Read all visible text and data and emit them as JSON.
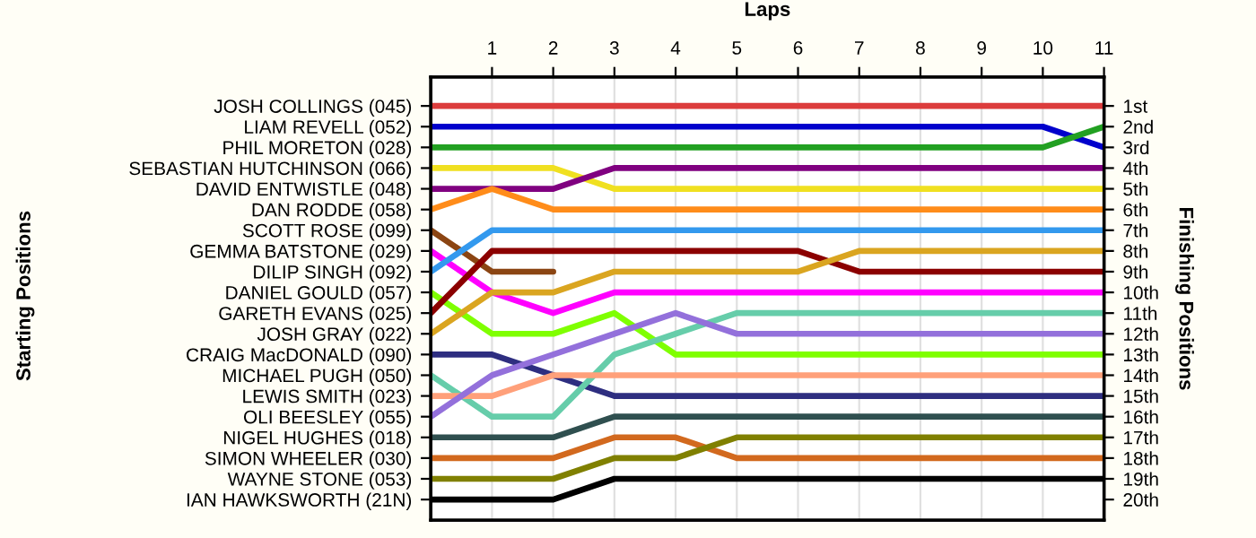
{
  "chart_data": {
    "type": "line",
    "xlabel": "Laps",
    "y2label": "Finishing Positions",
    "x": [
      0,
      1,
      2,
      3,
      4,
      5,
      6,
      7,
      8,
      9,
      10,
      11
    ],
    "xlim": [
      0,
      11
    ],
    "xticks": [
      1,
      2,
      3,
      4,
      5,
      6,
      7,
      8,
      9,
      10,
      11
    ],
    "annotations": [
      "Starting Positions",
      "JOSH COLLINGS (045)",
      "LIAM REVELL (052)",
      "PHIL MORETON (028)",
      "SEBASTIAN HUTCHINSON (066)",
      "DAVID ENTWISTLE (048)",
      "DAN RODDE (058)",
      "SCOTT ROSE (099)",
      "GEMMA BATSTONE (029)",
      "DILIP SINGH (092)",
      "DANIEL GOULD (057)",
      "GARETH EVANS (025)",
      "JOSH GRAY (022)",
      "CRAIG MacDONALD (090)",
      "MICHAEL PUGH (050)",
      "LEWIS SMITH (023)",
      "OLI BEESLEY (055)",
      "NIGEL HUGHES (018)",
      "SIMON WHEELER (030)",
      "WAYNE STONE (053)",
      "IAN HAWKSWORTH (21N)"
    ],
    "y2lim": [
      21,
      -0.4
    ],
    "legend": false,
    "y2ticks": [
      {
        "value": 1,
        "label": "1st"
      },
      {
        "value": 2,
        "label": "2nd"
      },
      {
        "value": 3,
        "label": "3rd"
      },
      {
        "value": 4,
        "label": "4th"
      },
      {
        "value": 5,
        "label": "5th"
      },
      {
        "value": 6,
        "label": "6th"
      },
      {
        "value": 7,
        "label": "7th"
      },
      {
        "value": 8,
        "label": "8th"
      },
      {
        "value": 9,
        "label": "9th"
      },
      {
        "value": 10,
        "label": "10th"
      },
      {
        "value": 11,
        "label": "11th"
      },
      {
        "value": 12,
        "label": "12th"
      },
      {
        "value": 13,
        "label": "13th"
      },
      {
        "value": 14,
        "label": "14th"
      },
      {
        "value": 15,
        "label": "15th"
      },
      {
        "value": 16,
        "label": "16th"
      },
      {
        "value": 17,
        "label": "17th"
      },
      {
        "value": 18,
        "label": "18th"
      },
      {
        "value": 19,
        "label": "19th"
      },
      {
        "value": 20,
        "label": "20th"
      }
    ],
    "grid": "x",
    "marker": "none",
    "line_style": "solid",
    "series": [
      {
        "axis": "y2",
        "color": "#dc3c3c",
        "values": [
          1,
          1,
          1,
          1,
          1,
          1,
          1,
          1,
          1,
          1,
          1,
          1
        ]
      },
      {
        "axis": "y2",
        "color": "#0000cc",
        "values": [
          2,
          2,
          2,
          2,
          2,
          2,
          2,
          2,
          2,
          2,
          2,
          3
        ]
      },
      {
        "axis": "y2",
        "color": "#22a022",
        "values": [
          3,
          3,
          3,
          3,
          3,
          3,
          3,
          3,
          3,
          3,
          3,
          2
        ]
      },
      {
        "axis": "y2",
        "color": "#f0e020",
        "values": [
          4,
          4,
          4,
          5,
          5,
          5,
          5,
          5,
          5,
          5,
          5,
          5
        ]
      },
      {
        "axis": "y2",
        "color": "#800080",
        "values": [
          5,
          5,
          5,
          4,
          4,
          4,
          4,
          4,
          4,
          4,
          4,
          4
        ]
      },
      {
        "axis": "y2",
        "color": "#ff8c1a",
        "values": [
          6,
          5,
          6,
          6,
          6,
          6,
          6,
          6,
          6,
          6,
          6,
          6
        ]
      },
      {
        "axis": "y2",
        "color": "#8b4513",
        "values": [
          7,
          9,
          9,
          null,
          null,
          null,
          null,
          null,
          null,
          null,
          null,
          null
        ]
      },
      {
        "axis": "y2",
        "color": "#ff00ff",
        "values": [
          8,
          10,
          11,
          10,
          10,
          10,
          10,
          10,
          10,
          10,
          10,
          10
        ]
      },
      {
        "axis": "y2",
        "color": "#3399ee",
        "values": [
          9,
          7,
          7,
          7,
          7,
          7,
          7,
          7,
          7,
          7,
          7,
          7
        ]
      },
      {
        "axis": "y2",
        "color": "#7fff00",
        "values": [
          10,
          12,
          12,
          11,
          13,
          13,
          13,
          13,
          13,
          13,
          13,
          13
        ]
      },
      {
        "axis": "y2",
        "color": "#8b0000",
        "values": [
          11,
          8,
          8,
          8,
          8,
          8,
          8,
          9,
          9,
          9,
          9,
          9
        ]
      },
      {
        "axis": "y2",
        "color": "#daa520",
        "values": [
          12,
          10,
          10,
          9,
          9,
          9,
          9,
          8,
          8,
          8,
          8,
          8
        ]
      },
      {
        "axis": "y2",
        "color": "#2e2e80",
        "values": [
          13,
          13,
          14,
          15,
          15,
          15,
          15,
          15,
          15,
          15,
          15,
          15
        ]
      },
      {
        "axis": "y2",
        "color": "#66cdaa",
        "values": [
          14,
          16,
          16,
          13,
          12,
          11,
          11,
          11,
          11,
          11,
          11,
          11
        ]
      },
      {
        "axis": "y2",
        "color": "#ffa07a",
        "values": [
          15,
          15,
          14,
          14,
          14,
          14,
          14,
          14,
          14,
          14,
          14,
          14
        ]
      },
      {
        "axis": "y2",
        "color": "#9370db",
        "values": [
          16,
          14,
          13,
          12,
          11,
          12,
          12,
          12,
          12,
          12,
          12,
          12
        ]
      },
      {
        "axis": "y2",
        "color": "#2f4f4f",
        "values": [
          17,
          17,
          17,
          16,
          16,
          16,
          16,
          16,
          16,
          16,
          16,
          16
        ]
      },
      {
        "axis": "y2",
        "color": "#d2691e",
        "values": [
          18,
          18,
          18,
          17,
          17,
          18,
          18,
          18,
          18,
          18,
          18,
          18
        ]
      },
      {
        "axis": "y2",
        "color": "#808000",
        "values": [
          19,
          19,
          19,
          18,
          18,
          17,
          17,
          17,
          17,
          17,
          17,
          17
        ]
      },
      {
        "axis": "y2",
        "color": "#000000",
        "values": [
          20,
          20,
          20,
          19,
          19,
          19,
          19,
          19,
          19,
          19,
          19,
          19
        ]
      }
    ]
  }
}
